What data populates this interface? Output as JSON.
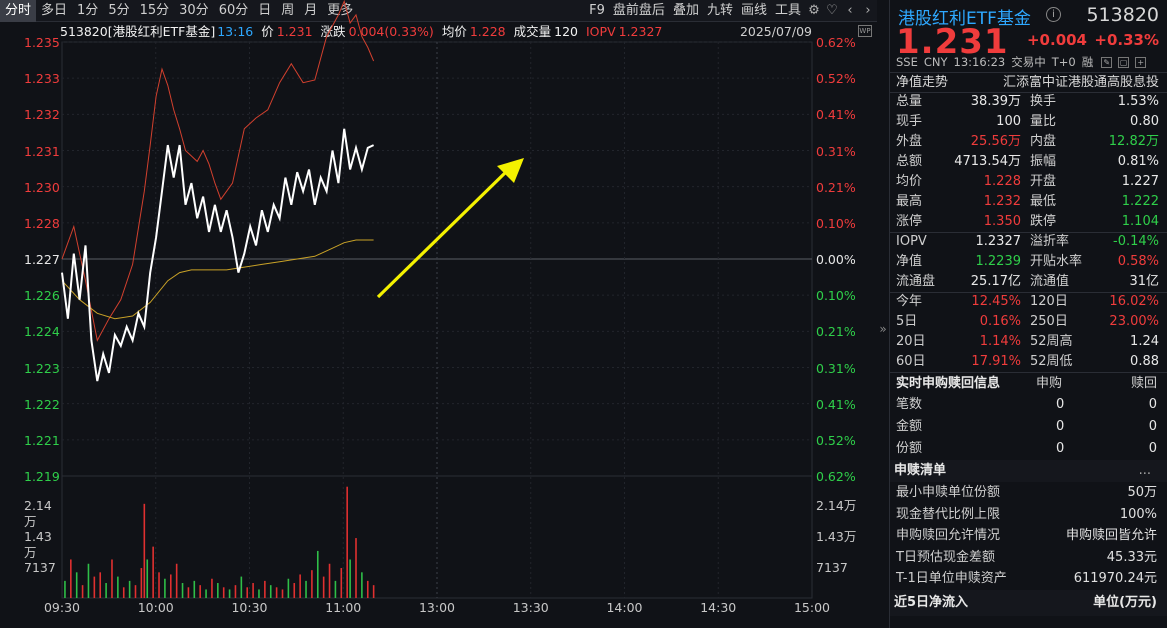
{
  "toolbar": {
    "periods": [
      "分时",
      "多日",
      "1分",
      "5分",
      "15分",
      "30分",
      "60分",
      "日",
      "周",
      "月",
      "更多"
    ],
    "tools": [
      "F9",
      "盘前盘后",
      "叠加",
      "九转",
      "画线",
      "工具"
    ],
    "icons": [
      "gear-icon",
      "heart-icon",
      "chevron-left-icon",
      "chevron-right-icon"
    ]
  },
  "chart_header": {
    "name": "513820[港股红利ETF基金]",
    "time": "13:16",
    "price_label": "价",
    "price": "1.231",
    "change_label": "涨跌",
    "change": "0.004(0.33%)",
    "avg_label": "均价",
    "avg": "1.228",
    "volume_label": "成交量",
    "volume": "120",
    "iopv_label": "IOPV",
    "iopv": "1.2327",
    "date": "2025/07/09",
    "wp_icon": "WP"
  },
  "chart_data": {
    "type": "line",
    "ylim": [
      1.219,
      1.235
    ],
    "prev_close": 1.227,
    "y_ticks_left": [
      {
        "v": "1.235",
        "c": "red"
      },
      {
        "v": "1.233",
        "c": "red"
      },
      {
        "v": "1.232",
        "c": "red"
      },
      {
        "v": "1.231",
        "c": "red"
      },
      {
        "v": "1.230",
        "c": "red"
      },
      {
        "v": "1.228",
        "c": "red"
      },
      {
        "v": "1.227",
        "c": "white"
      },
      {
        "v": "1.226",
        "c": "green"
      },
      {
        "v": "1.224",
        "c": "green"
      },
      {
        "v": "1.223",
        "c": "green"
      },
      {
        "v": "1.222",
        "c": "green"
      },
      {
        "v": "1.221",
        "c": "green"
      },
      {
        "v": "1.219",
        "c": "green"
      }
    ],
    "y_ticks_right": [
      {
        "v": "0.62%",
        "c": "red"
      },
      {
        "v": "0.52%",
        "c": "red"
      },
      {
        "v": "0.41%",
        "c": "red"
      },
      {
        "v": "0.31%",
        "c": "red"
      },
      {
        "v": "0.21%",
        "c": "red"
      },
      {
        "v": "0.10%",
        "c": "red"
      },
      {
        "v": "0.00%",
        "c": "white"
      },
      {
        "v": "0.10%",
        "c": "green"
      },
      {
        "v": "0.21%",
        "c": "green"
      },
      {
        "v": "0.31%",
        "c": "green"
      },
      {
        "v": "0.41%",
        "c": "green"
      },
      {
        "v": "0.52%",
        "c": "green"
      },
      {
        "v": "0.62%",
        "c": "green"
      }
    ],
    "volume_ticks": [
      "2.14万",
      "1.43万",
      "7137"
    ],
    "x_ticks": [
      "09:30",
      "10:00",
      "10:30",
      "11:00",
      "13:00",
      "13:30",
      "14:00",
      "14:30",
      "15:00"
    ],
    "series": [
      {
        "name": "价",
        "color": "#ffffff",
        "times": [
          0,
          2,
          4,
          6,
          8,
          10,
          12,
          14,
          16,
          18,
          20,
          22,
          24,
          26,
          28,
          30,
          32,
          34,
          36,
          38,
          40,
          42,
          44,
          46,
          48,
          50,
          52,
          54,
          56,
          58,
          60,
          62,
          64,
          66,
          68,
          70,
          72,
          74,
          76,
          78,
          80,
          82,
          84,
          86,
          88,
          90,
          92,
          94,
          96,
          98,
          100,
          102,
          104,
          106
        ],
        "values": [
          1.2265,
          1.2248,
          1.2272,
          1.2255,
          1.2275,
          1.224,
          1.2225,
          1.2235,
          1.2228,
          1.2242,
          1.2238,
          1.2245,
          1.224,
          1.225,
          1.2245,
          1.2265,
          1.2278,
          1.2295,
          1.2312,
          1.23,
          1.2312,
          1.229,
          1.2298,
          1.2285,
          1.2293,
          1.228,
          1.229,
          1.228,
          1.2288,
          1.2278,
          1.2265,
          1.2272,
          1.2282,
          1.2275,
          1.2288,
          1.228,
          1.229,
          1.2285,
          1.23,
          1.229,
          1.2302,
          1.2295,
          1.2303,
          1.229,
          1.23,
          1.2295,
          1.231,
          1.2298,
          1.2318,
          1.2303,
          1.2311,
          1.2303,
          1.2311,
          1.2312
        ]
      },
      {
        "name": "IOPV",
        "color": "#d2402e",
        "times": [
          0,
          4,
          8,
          12,
          16,
          20,
          24,
          28,
          30,
          32,
          34,
          36,
          38,
          40,
          42,
          46,
          48,
          50,
          52,
          54,
          58,
          62,
          66,
          70,
          74,
          78,
          82,
          86,
          90,
          94,
          96,
          98,
          100,
          102,
          104,
          106
        ],
        "values": [
          1.227,
          1.2282,
          1.2262,
          1.224,
          1.2248,
          1.2255,
          1.2268,
          1.2295,
          1.2312,
          1.233,
          1.234,
          1.2334,
          1.2325,
          1.2318,
          1.231,
          1.2306,
          1.231,
          1.2305,
          1.2298,
          1.2292,
          1.2298,
          1.2318,
          1.2322,
          1.2325,
          1.2335,
          1.2342,
          1.2335,
          1.2336,
          1.2352,
          1.236,
          1.2365,
          1.2357,
          1.236,
          1.2352,
          1.2348,
          1.2343
        ]
      },
      {
        "name": "均价",
        "color": "#c9a227",
        "times": [
          0,
          6,
          12,
          18,
          24,
          30,
          36,
          40,
          44,
          50,
          56,
          62,
          68,
          74,
          80,
          86,
          92,
          96,
          100,
          106
        ],
        "values": [
          1.2262,
          1.2255,
          1.225,
          1.2248,
          1.2249,
          1.2254,
          1.2262,
          1.2265,
          1.2266,
          1.2266,
          1.2266,
          1.2267,
          1.2268,
          1.2269,
          1.227,
          1.2271,
          1.2274,
          1.2276,
          1.2277,
          1.2277
        ]
      }
    ],
    "volume_bars": [
      {
        "t": 1,
        "v": 4000,
        "c": "g"
      },
      {
        "t": 3,
        "v": 9000,
        "c": "r"
      },
      {
        "t": 5,
        "v": 6000,
        "c": "g"
      },
      {
        "t": 7,
        "v": 3000,
        "c": "r"
      },
      {
        "t": 9,
        "v": 8000,
        "c": "g"
      },
      {
        "t": 11,
        "v": 5000,
        "c": "r"
      },
      {
        "t": 13,
        "v": 6000,
        "c": "r"
      },
      {
        "t": 15,
        "v": 3500,
        "c": "g"
      },
      {
        "t": 17,
        "v": 9000,
        "c": "r"
      },
      {
        "t": 19,
        "v": 5000,
        "c": "g"
      },
      {
        "t": 21,
        "v": 2500,
        "c": "r"
      },
      {
        "t": 23,
        "v": 4000,
        "c": "g"
      },
      {
        "t": 25,
        "v": 3000,
        "c": "r"
      },
      {
        "t": 27,
        "v": 7000,
        "c": "r"
      },
      {
        "t": 28,
        "v": 22000,
        "c": "r"
      },
      {
        "t": 29,
        "v": 9000,
        "c": "g"
      },
      {
        "t": 31,
        "v": 12000,
        "c": "r"
      },
      {
        "t": 33,
        "v": 6000,
        "c": "r"
      },
      {
        "t": 35,
        "v": 4500,
        "c": "g"
      },
      {
        "t": 37,
        "v": 5500,
        "c": "r"
      },
      {
        "t": 39,
        "v": 8000,
        "c": "r"
      },
      {
        "t": 41,
        "v": 3500,
        "c": "g"
      },
      {
        "t": 43,
        "v": 2500,
        "c": "r"
      },
      {
        "t": 45,
        "v": 4000,
        "c": "g"
      },
      {
        "t": 47,
        "v": 3000,
        "c": "r"
      },
      {
        "t": 49,
        "v": 2000,
        "c": "g"
      },
      {
        "t": 51,
        "v": 4500,
        "c": "r"
      },
      {
        "t": 53,
        "v": 3500,
        "c": "g"
      },
      {
        "t": 55,
        "v": 2500,
        "c": "r"
      },
      {
        "t": 57,
        "v": 2000,
        "c": "g"
      },
      {
        "t": 59,
        "v": 3000,
        "c": "r"
      },
      {
        "t": 61,
        "v": 5000,
        "c": "g"
      },
      {
        "t": 63,
        "v": 2500,
        "c": "r"
      },
      {
        "t": 65,
        "v": 3500,
        "c": "r"
      },
      {
        "t": 67,
        "v": 2000,
        "c": "g"
      },
      {
        "t": 69,
        "v": 4000,
        "c": "r"
      },
      {
        "t": 71,
        "v": 3000,
        "c": "g"
      },
      {
        "t": 73,
        "v": 2500,
        "c": "r"
      },
      {
        "t": 75,
        "v": 2000,
        "c": "r"
      },
      {
        "t": 77,
        "v": 4500,
        "c": "g"
      },
      {
        "t": 79,
        "v": 3500,
        "c": "r"
      },
      {
        "t": 81,
        "v": 5500,
        "c": "r"
      },
      {
        "t": 83,
        "v": 4000,
        "c": "g"
      },
      {
        "t": 85,
        "v": 6500,
        "c": "r"
      },
      {
        "t": 87,
        "v": 11000,
        "c": "g"
      },
      {
        "t": 89,
        "v": 5000,
        "c": "r"
      },
      {
        "t": 91,
        "v": 8000,
        "c": "r"
      },
      {
        "t": 93,
        "v": 4000,
        "c": "g"
      },
      {
        "t": 95,
        "v": 7000,
        "c": "r"
      },
      {
        "t": 97,
        "v": 26000,
        "c": "r"
      },
      {
        "t": 98,
        "v": 9000,
        "c": "g"
      },
      {
        "t": 100,
        "v": 14000,
        "c": "r"
      },
      {
        "t": 102,
        "v": 6000,
        "c": "g"
      },
      {
        "t": 104,
        "v": 4000,
        "c": "r"
      },
      {
        "t": 106,
        "v": 3000,
        "c": "r"
      }
    ],
    "annotation": {
      "type": "arrow",
      "color": "#f4f100"
    }
  },
  "panel": {
    "fund_name": "港股红利ETF基金",
    "info_icon": "info-icon",
    "code": "513820",
    "price": "1.231",
    "change": "+0.004",
    "change_pct": "+0.33%",
    "status": [
      "SSE",
      "CNY",
      "13:16:23",
      "交易中",
      "T+0",
      "融"
    ],
    "nav_title": "净值走势",
    "fund_company": "汇添富中证港股通高股息投",
    "quote_rows": [
      [
        {
          "k": "总量",
          "v": "38.39万",
          "c": "white"
        },
        {
          "k": "换手",
          "v": "1.53%",
          "c": "white"
        }
      ],
      [
        {
          "k": "现手",
          "v": "100",
          "c": "white"
        },
        {
          "k": "量比",
          "v": "0.80",
          "c": "white"
        }
      ],
      [
        {
          "k": "外盘",
          "v": "25.56万",
          "c": "red"
        },
        {
          "k": "内盘",
          "v": "12.82万",
          "c": "green"
        }
      ],
      [
        {
          "k": "总额",
          "v": "4713.54万",
          "c": "white"
        },
        {
          "k": "振幅",
          "v": "0.81%",
          "c": "white"
        }
      ],
      [
        {
          "k": "均价",
          "v": "1.228",
          "c": "red"
        },
        {
          "k": "开盘",
          "v": "1.227",
          "c": "white"
        }
      ],
      [
        {
          "k": "最高",
          "v": "1.232",
          "c": "red"
        },
        {
          "k": "最低",
          "v": "1.222",
          "c": "green"
        }
      ],
      [
        {
          "k": "涨停",
          "v": "1.350",
          "c": "red"
        },
        {
          "k": "跌停",
          "v": "1.104",
          "c": "green"
        }
      ],
      [
        {
          "k": "IOPV",
          "v": "1.2327",
          "c": "white"
        },
        {
          "k": "溢折率",
          "v": "-0.14%",
          "c": "green"
        }
      ],
      [
        {
          "k": "净值",
          "v": "1.2239",
          "c": "green"
        },
        {
          "k": "开贴水率",
          "v": "0.58%",
          "c": "red"
        }
      ],
      [
        {
          "k": "流通盘",
          "v": "25.17亿",
          "c": "white"
        },
        {
          "k": "流通值",
          "v": "31亿",
          "c": "white"
        }
      ],
      [
        {
          "k": "今年",
          "v": "12.45%",
          "c": "red"
        },
        {
          "k": "120日",
          "v": "16.02%",
          "c": "red"
        }
      ],
      [
        {
          "k": "5日",
          "v": "0.16%",
          "c": "red"
        },
        {
          "k": "250日",
          "v": "23.00%",
          "c": "red"
        }
      ],
      [
        {
          "k": "20日",
          "v": "1.14%",
          "c": "red"
        },
        {
          "k": "52周高",
          "v": "1.24",
          "c": "white"
        }
      ],
      [
        {
          "k": "60日",
          "v": "17.91%",
          "c": "red"
        },
        {
          "k": "52周低",
          "v": "0.88",
          "c": "white"
        }
      ]
    ],
    "subscription": {
      "title": "实时申购赎回信息",
      "col_buy": "申购",
      "col_sell": "赎回",
      "rows": [
        {
          "k": "笔数",
          "buy": "0",
          "sell": "0"
        },
        {
          "k": "金额",
          "buy": "0",
          "sell": "0"
        },
        {
          "k": "份额",
          "buy": "0",
          "sell": "0"
        }
      ]
    },
    "list": {
      "title": "申赎清单",
      "more": "...",
      "rows": [
        {
          "k": "最小申赎单位份额",
          "v": "50万"
        },
        {
          "k": "现金替代比例上限",
          "v": "100%"
        },
        {
          "k": "申购赎回允许情况",
          "v": "申购赎回皆允许"
        },
        {
          "k": "T日预估现金差额",
          "v": "45.33元"
        },
        {
          "k": "T-1日单位申赎资产",
          "v": "611970.24元"
        }
      ]
    },
    "footer": {
      "left": "近5日净流入",
      "right": "单位(万元)"
    },
    "collapse_icon": "»"
  }
}
